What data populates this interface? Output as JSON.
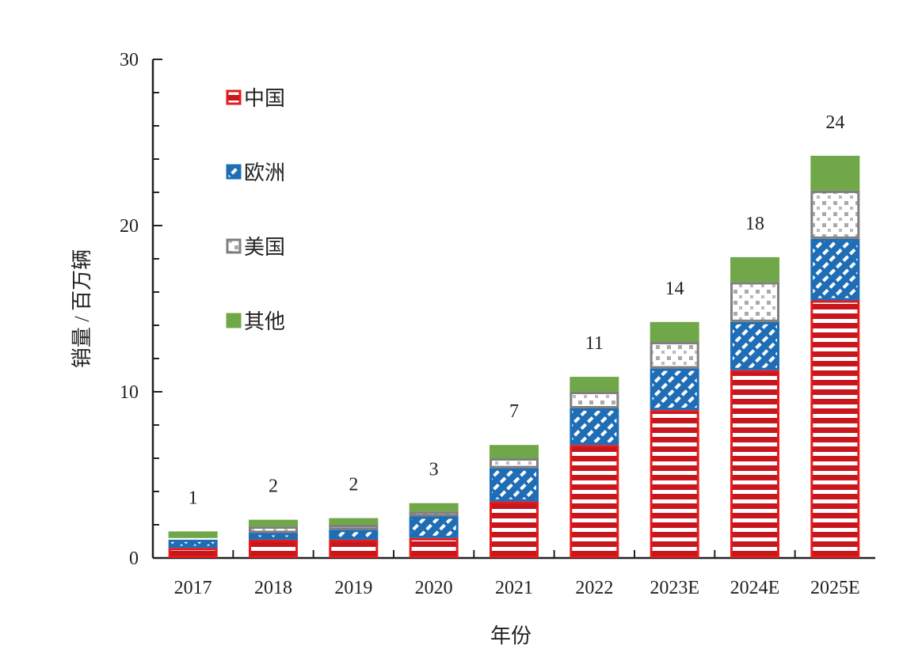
{
  "chart_data": {
    "type": "bar",
    "stacked": true,
    "title": "",
    "xlabel": "年份",
    "ylabel": "销量 / 百万辆",
    "ylim": [
      0,
      30
    ],
    "yticks": [
      "0",
      "10",
      "20",
      "30"
    ],
    "categories": [
      "2017",
      "2018",
      "2019",
      "2020",
      "2021",
      "2022",
      "2023E",
      "2024E",
      "2025E"
    ],
    "series": [
      {
        "name": "中国",
        "color": "#e41a1c",
        "values": [
          0.6,
          1.1,
          1.1,
          1.2,
          3.4,
          6.8,
          8.9,
          11.3,
          15.5
        ]
      },
      {
        "name": "欧洲",
        "color": "#1f6db5",
        "values": [
          0.5,
          0.4,
          0.6,
          1.3,
          2.0,
          2.2,
          2.5,
          2.9,
          3.7
        ]
      },
      {
        "name": "美国",
        "color": "#7f7f7f",
        "values": [
          0.1,
          0.4,
          0.3,
          0.3,
          0.6,
          1.0,
          1.6,
          2.4,
          2.9
        ]
      },
      {
        "name": "其他",
        "color": "#70a849",
        "values": [
          0.4,
          0.4,
          0.4,
          0.5,
          0.8,
          0.9,
          1.2,
          1.5,
          2.1
        ]
      }
    ],
    "totals_labels": [
      "1",
      "2",
      "2",
      "3",
      "7",
      "11",
      "14",
      "18",
      "24"
    ],
    "legend": "top-left",
    "grid": false
  }
}
